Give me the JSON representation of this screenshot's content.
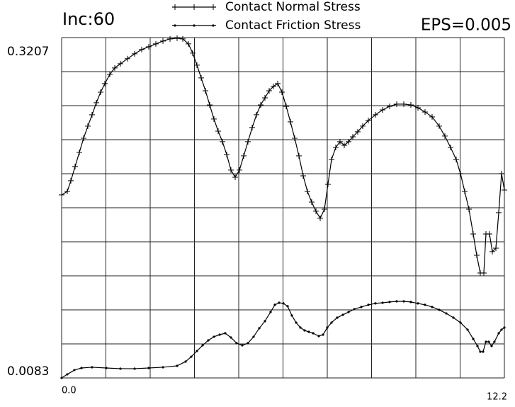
{
  "chart_data": {
    "type": "line",
    "title": "Inc:60",
    "annotations": [
      "EPS=0.005"
    ],
    "xlim": [
      0,
      12.2
    ],
    "xticks": [
      {
        "value": 0,
        "label": "0.0"
      },
      12.2
    ],
    "ylim": [
      0.0083,
      0.3207
    ],
    "yticks": [
      0.0083,
      0.3207
    ],
    "grid": true,
    "series": [
      {
        "name": "Contact Normal Stress",
        "color": "#000000",
        "marker": "plus",
        "x": [
          0,
          0.156,
          0.254,
          0.371,
          0.488,
          0.605,
          0.722,
          0.839,
          0.956,
          1.074,
          1.191,
          1.327,
          1.464,
          1.62,
          1.815,
          2.011,
          2.206,
          2.401,
          2.596,
          2.792,
          2.987,
          3.182,
          3.338,
          3.494,
          3.611,
          3.728,
          3.846,
          3.963,
          4.08,
          4.197,
          4.314,
          4.431,
          4.548,
          4.665,
          4.782,
          4.9,
          5.017,
          5.134,
          5.251,
          5.368,
          5.485,
          5.602,
          5.719,
          5.836,
          5.954,
          6.071,
          6.188,
          6.305,
          6.422,
          6.539,
          6.656,
          6.773,
          6.89,
          7.008,
          7.125,
          7.242,
          7.339,
          7.437,
          7.554,
          7.671,
          7.788,
          7.906,
          8.023,
          8.159,
          8.296,
          8.452,
          8.647,
          8.843,
          9.038,
          9.233,
          9.428,
          9.623,
          9.819,
          10.014,
          10.209,
          10.404,
          10.56,
          10.716,
          10.873,
          10.99,
          11.107,
          11.224,
          11.341,
          11.438,
          11.536,
          11.634,
          11.692,
          11.79,
          11.868,
          11.966,
          12.044,
          12.122,
          12.2
        ],
        "values": [
          0.1763,
          0.1795,
          0.1893,
          0.2023,
          0.2153,
          0.2283,
          0.2394,
          0.2498,
          0.2609,
          0.2706,
          0.2785,
          0.2869,
          0.2928,
          0.2967,
          0.3013,
          0.3058,
          0.3097,
          0.3123,
          0.3149,
          0.3175,
          0.3195,
          0.3201,
          0.3195,
          0.3149,
          0.3065,
          0.2954,
          0.2837,
          0.2719,
          0.2589,
          0.2459,
          0.2348,
          0.2251,
          0.2134,
          0.1991,
          0.1925,
          0.1991,
          0.2121,
          0.2251,
          0.2381,
          0.2498,
          0.2589,
          0.2654,
          0.2719,
          0.2759,
          0.2785,
          0.2706,
          0.2576,
          0.2433,
          0.2283,
          0.2121,
          0.1938,
          0.1795,
          0.1697,
          0.1613,
          0.1548,
          0.1632,
          0.186,
          0.2088,
          0.2199,
          0.2251,
          0.2218,
          0.2251,
          0.2296,
          0.2342,
          0.2394,
          0.2446,
          0.2498,
          0.2543,
          0.2576,
          0.2596,
          0.2596,
          0.2589,
          0.2563,
          0.2524,
          0.2479,
          0.2394,
          0.2303,
          0.2199,
          0.2088,
          0.1958,
          0.1795,
          0.1632,
          0.1404,
          0.1209,
          0.1046,
          0.1046,
          0.1404,
          0.1404,
          0.1242,
          0.1274,
          0.16,
          0.1958,
          0.1808
        ]
      },
      {
        "name": "Contact Friction Stress",
        "color": "#000000",
        "marker": "dot",
        "x": [
          0,
          0.156,
          0.351,
          0.547,
          0.839,
          1.23,
          1.62,
          2.011,
          2.401,
          2.792,
          3.182,
          3.416,
          3.572,
          3.728,
          3.885,
          4.041,
          4.197,
          4.353,
          4.509,
          4.665,
          4.821,
          4.978,
          5.134,
          5.29,
          5.446,
          5.602,
          5.758,
          5.876,
          5.993,
          6.11,
          6.227,
          6.344,
          6.461,
          6.578,
          6.695,
          6.812,
          6.93,
          7.086,
          7.203,
          7.32,
          7.437,
          7.593,
          7.749,
          7.906,
          8.062,
          8.257,
          8.452,
          8.647,
          8.843,
          9.038,
          9.233,
          9.428,
          9.623,
          9.819,
          10.014,
          10.209,
          10.404,
          10.6,
          10.795,
          10.99,
          11.185,
          11.341,
          11.458,
          11.536,
          11.614,
          11.692,
          11.77,
          11.848,
          11.926,
          12.044,
          12.122,
          12.2
        ],
        "values": [
          0.0083,
          0.0116,
          0.0155,
          0.0174,
          0.0181,
          0.0174,
          0.0168,
          0.0168,
          0.0174,
          0.0181,
          0.0194,
          0.0233,
          0.0278,
          0.033,
          0.0382,
          0.0428,
          0.0461,
          0.048,
          0.0493,
          0.0454,
          0.0402,
          0.0382,
          0.0402,
          0.0461,
          0.0539,
          0.0604,
          0.0688,
          0.0754,
          0.0773,
          0.0767,
          0.0741,
          0.0656,
          0.0591,
          0.0545,
          0.0519,
          0.0506,
          0.0493,
          0.0467,
          0.048,
          0.0545,
          0.0591,
          0.0636,
          0.0662,
          0.0688,
          0.0714,
          0.0734,
          0.0754,
          0.0767,
          0.0773,
          0.078,
          0.0786,
          0.0786,
          0.078,
          0.0767,
          0.0754,
          0.0734,
          0.0708,
          0.0675,
          0.0636,
          0.0591,
          0.0526,
          0.0441,
          0.0376,
          0.0324,
          0.0324,
          0.0415,
          0.0415,
          0.0376,
          0.0415,
          0.0493,
          0.0526,
          0.0545
        ]
      }
    ]
  }
}
